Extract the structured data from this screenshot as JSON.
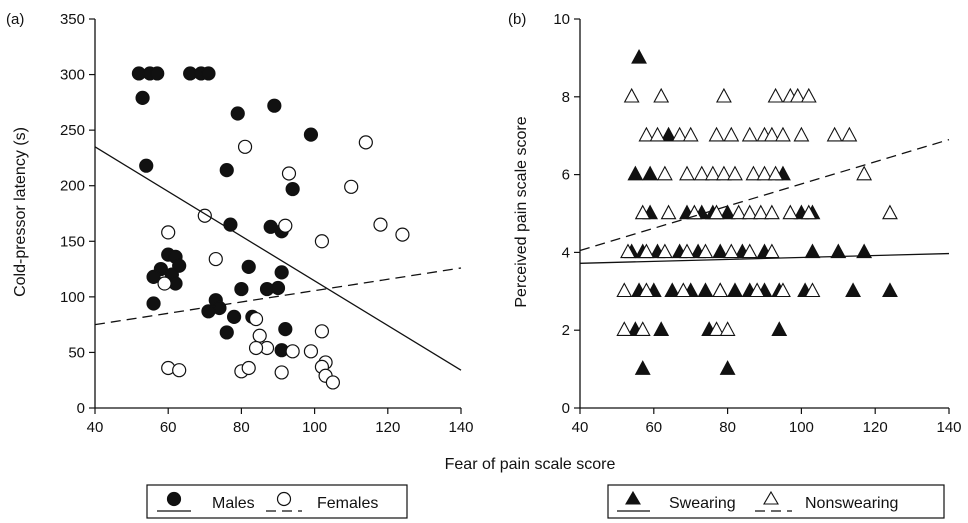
{
  "figure": {
    "shared_xlabel": "Fear of pain scale score"
  },
  "chart_data": [
    {
      "type": "scatter",
      "panel_label": "(a)",
      "xlabel": "",
      "ylabel": "Cold-pressor latency (s)",
      "xlim": [
        40,
        140
      ],
      "ylim": [
        0,
        350
      ],
      "xticks": [
        40,
        60,
        80,
        100,
        120,
        140
      ],
      "yticks": [
        0,
        50,
        100,
        150,
        200,
        250,
        300,
        350
      ],
      "grid": false,
      "legend_position": "bottom",
      "series": [
        {
          "name": "Males",
          "marker": "filled-circle",
          "color": "#111111",
          "line_style": "solid",
          "points": [
            [
              52,
              301
            ],
            [
              55,
              301
            ],
            [
              57,
              301
            ],
            [
              53,
              279
            ],
            [
              54,
              218
            ],
            [
              66,
              301
            ],
            [
              69,
              301
            ],
            [
              71,
              301
            ],
            [
              79,
              265
            ],
            [
              89,
              272
            ],
            [
              99,
              246
            ],
            [
              94,
              197
            ],
            [
              76,
              214
            ],
            [
              77,
              165
            ],
            [
              88,
              163
            ],
            [
              91,
              159
            ],
            [
              60,
              138
            ],
            [
              58,
              125
            ],
            [
              62,
              136
            ],
            [
              63,
              128
            ],
            [
              61,
              120
            ],
            [
              56,
              118
            ],
            [
              62,
              112
            ],
            [
              56,
              94
            ],
            [
              73,
              97
            ],
            [
              82,
              127
            ],
            [
              87,
              107
            ],
            [
              90,
              108
            ],
            [
              91,
              122
            ],
            [
              74,
              90
            ],
            [
              71,
              87
            ],
            [
              80,
              107
            ],
            [
              83,
              82
            ],
            [
              78,
              82
            ],
            [
              76,
              68
            ],
            [
              92,
              71
            ],
            [
              91,
              52
            ]
          ],
          "regression": {
            "x": [
              40,
              140
            ],
            "y": [
              235,
              34
            ]
          }
        },
        {
          "name": "Females",
          "marker": "open-circle",
          "color": "#111111",
          "line_style": "dashed",
          "points": [
            [
              81,
              235
            ],
            [
              93,
              211
            ],
            [
              110,
              199
            ],
            [
              114,
              239
            ],
            [
              70,
              173
            ],
            [
              92,
              164
            ],
            [
              102,
              150
            ],
            [
              118,
              165
            ],
            [
              124,
              156
            ],
            [
              60,
              158
            ],
            [
              73,
              134
            ],
            [
              59,
              112
            ],
            [
              84,
              80
            ],
            [
              85,
              65
            ],
            [
              87,
              54
            ],
            [
              84,
              54
            ],
            [
              94,
              51
            ],
            [
              99,
              51
            ],
            [
              102,
              69
            ],
            [
              60,
              36
            ],
            [
              63,
              34
            ],
            [
              80,
              33
            ],
            [
              82,
              36
            ],
            [
              91,
              32
            ],
            [
              103,
              41
            ],
            [
              102,
              37
            ],
            [
              103,
              29
            ],
            [
              105,
              23
            ]
          ],
          "regression": {
            "x": [
              40,
              140
            ],
            "y": [
              75,
              126
            ]
          }
        }
      ]
    },
    {
      "type": "scatter",
      "panel_label": "(b)",
      "xlabel": "",
      "ylabel": "Perceived pain scale score",
      "xlim": [
        40,
        140
      ],
      "ylim": [
        0,
        10
      ],
      "xticks": [
        40,
        60,
        80,
        100,
        120,
        140
      ],
      "yticks": [
        0,
        2,
        4,
        6,
        8,
        10
      ],
      "grid": false,
      "legend_position": "bottom",
      "series": [
        {
          "name": "Swearing",
          "marker": "filled-triangle",
          "color": "#111111",
          "line_style": "solid",
          "points": [
            [
              56,
              9
            ],
            [
              57,
              1
            ],
            [
              80,
              1
            ],
            [
              55,
              6
            ],
            [
              59,
              6
            ],
            [
              64,
              7
            ],
            [
              95,
              6
            ],
            [
              59,
              5
            ],
            [
              69,
              5
            ],
            [
              73,
              5
            ],
            [
              76,
              5
            ],
            [
              80,
              5
            ],
            [
              100,
              5
            ],
            [
              103,
              5
            ],
            [
              54,
              4
            ],
            [
              57,
              4
            ],
            [
              61,
              4
            ],
            [
              67,
              4
            ],
            [
              72,
              4
            ],
            [
              78,
              4
            ],
            [
              84,
              4
            ],
            [
              90,
              4
            ],
            [
              103,
              4
            ],
            [
              110,
              4
            ],
            [
              117,
              4
            ],
            [
              56,
              3
            ],
            [
              60,
              3
            ],
            [
              65,
              3
            ],
            [
              70,
              3
            ],
            [
              74,
              3
            ],
            [
              78,
              3
            ],
            [
              82,
              3
            ],
            [
              86,
              3
            ],
            [
              90,
              3
            ],
            [
              94,
              3
            ],
            [
              101,
              3
            ],
            [
              114,
              3
            ],
            [
              124,
              3
            ],
            [
              55,
              2
            ],
            [
              62,
              2
            ],
            [
              75,
              2
            ],
            [
              94,
              2
            ]
          ],
          "regression": {
            "x": [
              40,
              140
            ],
            "y": [
              3.72,
              3.97
            ]
          }
        },
        {
          "name": "Nonswearing",
          "marker": "open-triangle",
          "color": "#111111",
          "line_style": "dashed",
          "points": [
            [
              54,
              8
            ],
            [
              62,
              8
            ],
            [
              79,
              8
            ],
            [
              93,
              8
            ],
            [
              97,
              8
            ],
            [
              99,
              8
            ],
            [
              102,
              8
            ],
            [
              58,
              7
            ],
            [
              61,
              7
            ],
            [
              67,
              7
            ],
            [
              70,
              7
            ],
            [
              77,
              7
            ],
            [
              81,
              7
            ],
            [
              86,
              7
            ],
            [
              90,
              7
            ],
            [
              92,
              7
            ],
            [
              95,
              7
            ],
            [
              100,
              7
            ],
            [
              109,
              7
            ],
            [
              113,
              7
            ],
            [
              63,
              6
            ],
            [
              69,
              6
            ],
            [
              73,
              6
            ],
            [
              76,
              6
            ],
            [
              79,
              6
            ],
            [
              82,
              6
            ],
            [
              87,
              6
            ],
            [
              90,
              6
            ],
            [
              93,
              6
            ],
            [
              117,
              6
            ],
            [
              57,
              5
            ],
            [
              64,
              5
            ],
            [
              71,
              5
            ],
            [
              77,
              5
            ],
            [
              83,
              5
            ],
            [
              86,
              5
            ],
            [
              89,
              5
            ],
            [
              92,
              5
            ],
            [
              97,
              5
            ],
            [
              102,
              5
            ],
            [
              124,
              5
            ],
            [
              53,
              4
            ],
            [
              58,
              4
            ],
            [
              63,
              4
            ],
            [
              69,
              4
            ],
            [
              74,
              4
            ],
            [
              81,
              4
            ],
            [
              86,
              4
            ],
            [
              92,
              4
            ],
            [
              52,
              3
            ],
            [
              58,
              3
            ],
            [
              68,
              3
            ],
            [
              78,
              3
            ],
            [
              88,
              3
            ],
            [
              95,
              3
            ],
            [
              103,
              3
            ],
            [
              52,
              2
            ],
            [
              57,
              2
            ],
            [
              77,
              2
            ],
            [
              80,
              2
            ]
          ],
          "regression": {
            "x": [
              40,
              140
            ],
            "y": [
              4.05,
              6.9
            ]
          }
        }
      ]
    }
  ]
}
